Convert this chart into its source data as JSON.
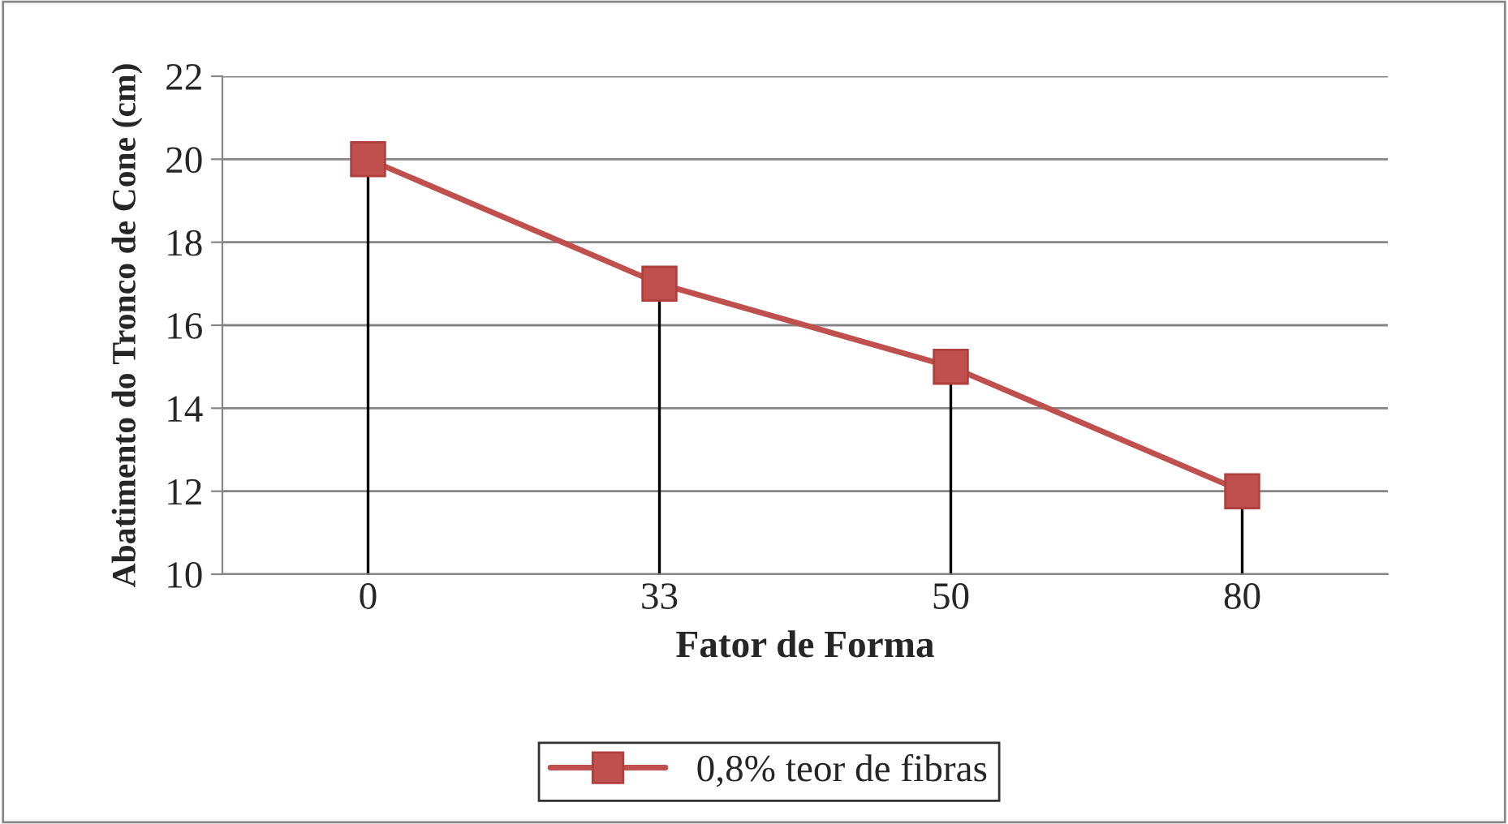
{
  "chart_data": {
    "type": "line",
    "xlabel": "Fator de Forma",
    "ylabel": "Abatimento do Tronco de Cone (cm)",
    "categories": [
      "0",
      "33",
      "50",
      "80"
    ],
    "series": [
      {
        "name": "0,8% teor de fibras",
        "color": "#c0504d",
        "values": [
          20,
          17,
          15,
          12
        ],
        "errors": [
          [
            10,
            20
          ],
          [
            10,
            17
          ],
          [
            10,
            15
          ],
          [
            10,
            12
          ]
        ]
      }
    ],
    "ylim": [
      10,
      22
    ],
    "yticks": [
      10,
      12,
      14,
      16,
      18,
      20,
      22
    ],
    "grid": "y",
    "legend": "bottom",
    "marker": "square",
    "line_style": "solid"
  }
}
